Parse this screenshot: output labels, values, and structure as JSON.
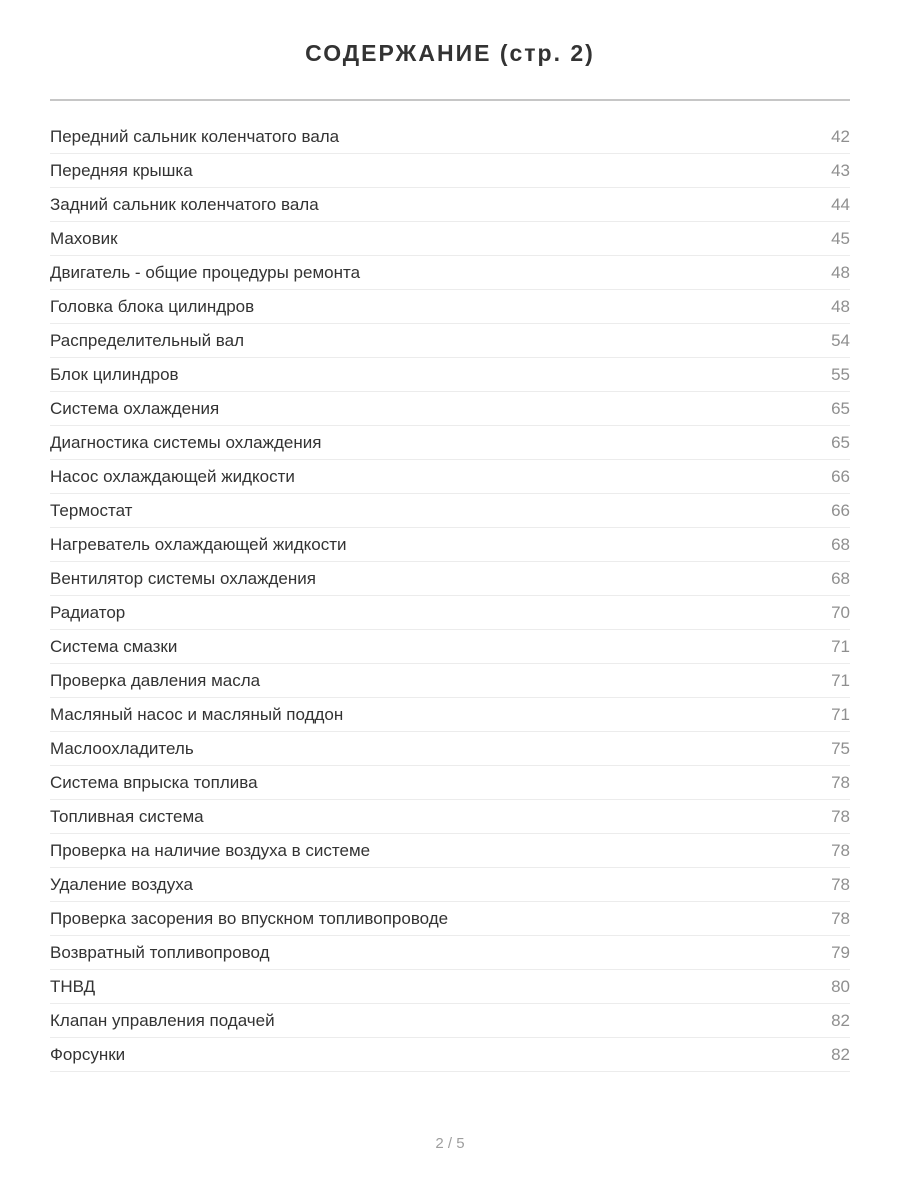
{
  "header": {
    "title": "СОДЕРЖАНИЕ (стр. 2)"
  },
  "toc": {
    "entries": [
      {
        "label": "Передний сальник коленчатого вала",
        "page": "42"
      },
      {
        "label": "Передняя крышка",
        "page": "43"
      },
      {
        "label": "Задний сальник коленчатого вала",
        "page": "44"
      },
      {
        "label": "Маховик",
        "page": "45"
      },
      {
        "label": "Двигатель - общие процедуры ремонта",
        "page": "48"
      },
      {
        "label": "Головка блока цилиндров",
        "page": "48"
      },
      {
        "label": "Распределительный вал",
        "page": "54"
      },
      {
        "label": "Блок цилиндров",
        "page": "55"
      },
      {
        "label": "Система охлаждения",
        "page": "65"
      },
      {
        "label": "Диагностика системы охлаждения",
        "page": "65"
      },
      {
        "label": "Насос охлаждающей жидкости",
        "page": "66"
      },
      {
        "label": "Термостат",
        "page": "66"
      },
      {
        "label": "Нагреватель охлаждающей жидкости",
        "page": "68"
      },
      {
        "label": "Вентилятор системы охлаждения",
        "page": "68"
      },
      {
        "label": "Радиатор",
        "page": "70"
      },
      {
        "label": "Система смазки",
        "page": "71"
      },
      {
        "label": "Проверка давления масла",
        "page": "71"
      },
      {
        "label": "Масляный насос и масляный поддон",
        "page": "71"
      },
      {
        "label": "Маслоохладитель",
        "page": "75"
      },
      {
        "label": "Система впрыска топлива",
        "page": "78"
      },
      {
        "label": "Топливная система",
        "page": "78"
      },
      {
        "label": "Проверка на наличие воздуха в системе",
        "page": "78"
      },
      {
        "label": "Удаление воздуха",
        "page": "78"
      },
      {
        "label": "Проверка засорения во впускном топливопроводе",
        "page": "78"
      },
      {
        "label": "Возвратный топливопровод",
        "page": "79"
      },
      {
        "label": "ТНВД",
        "page": "80"
      },
      {
        "label": "Клапан управления подачей",
        "page": "82"
      },
      {
        "label": "Форсунки",
        "page": "82"
      }
    ]
  },
  "footer": {
    "page_indicator": "2 / 5"
  },
  "colors": {
    "text": "#333333",
    "page_number": "#8f8f8f",
    "header_divider": "#c6c6c6",
    "row_divider": "#ececec",
    "footer_text": "#9e9e9e"
  }
}
